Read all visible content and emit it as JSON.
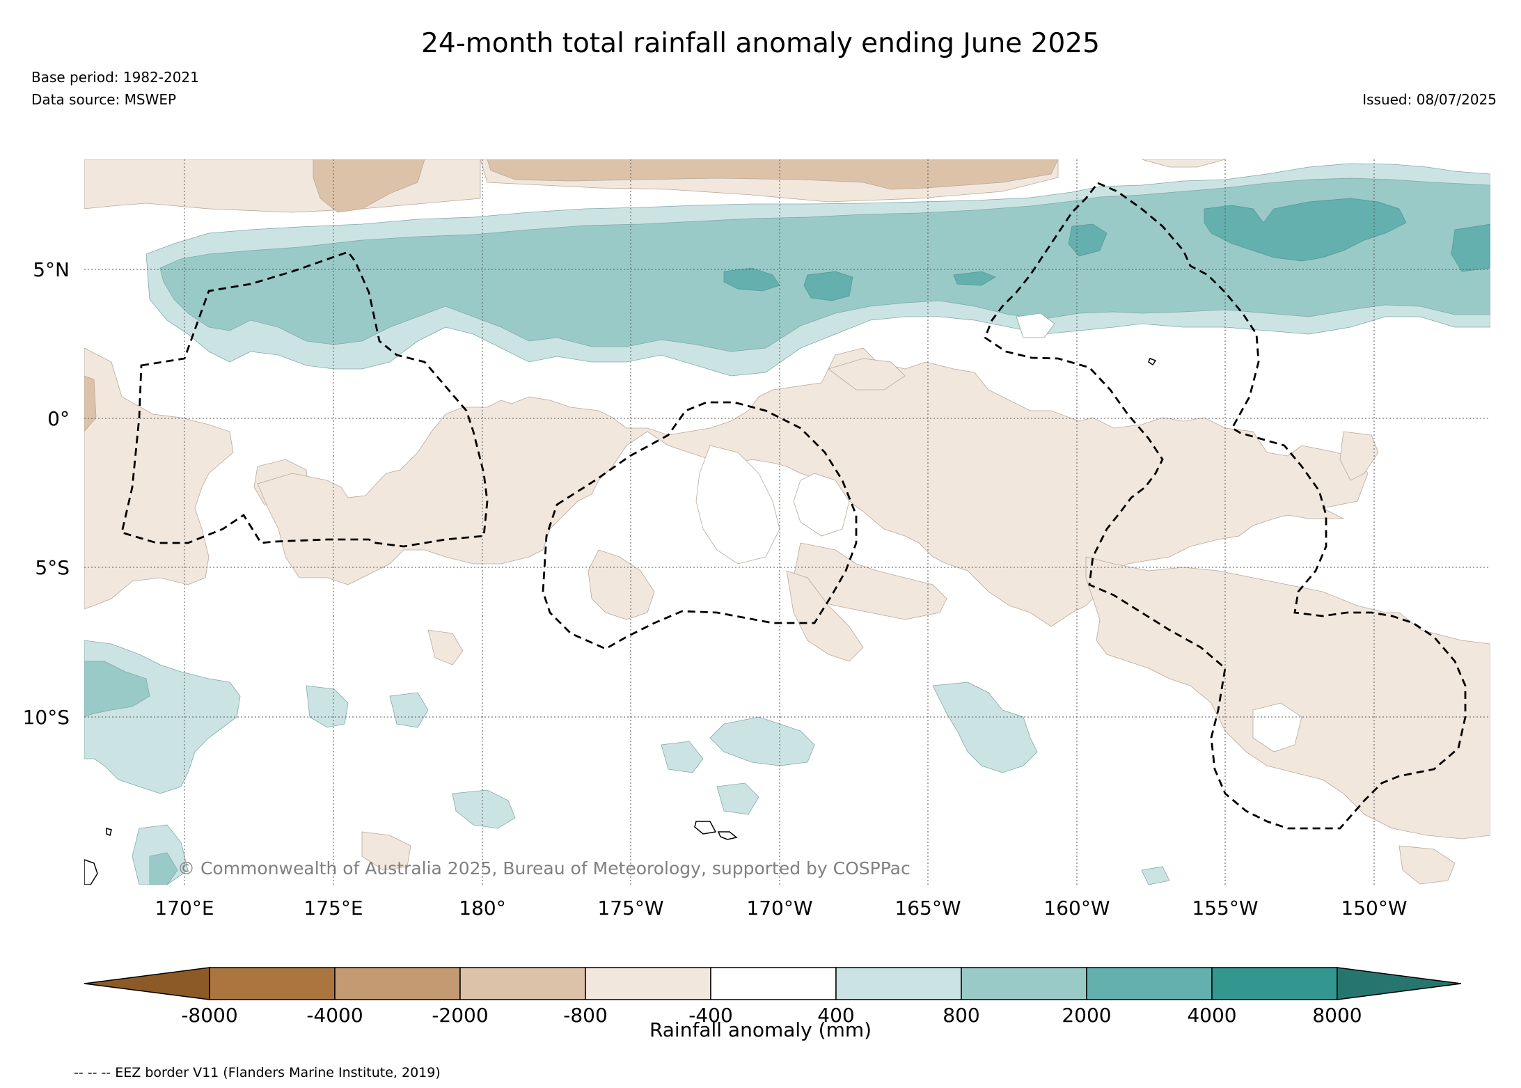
{
  "title": "24-month total rainfall anomaly ending June 2025",
  "base_period": "Base period: 1982-2021",
  "data_source": "Data source: MSWEP",
  "issued": "Issued: 08/07/2025",
  "copyright": "© Commonwealth of Australia 2025, Bureau of Meteorology, supported by COSPPac",
  "lat_labels": [
    "5°N",
    "0°",
    "5°S",
    "10°S"
  ],
  "lon_labels": [
    "170°E",
    "175°E",
    "180°",
    "175°W",
    "170°W",
    "165°W",
    "160°W",
    "155°W",
    "150°W"
  ],
  "colorbar": {
    "ticks": [
      "-8000",
      "-4000",
      "-2000",
      "-800",
      "-400",
      "400",
      "800",
      "2000",
      "4000",
      "8000"
    ],
    "colors": [
      "#8c5a26",
      "#ab753f",
      "#c49a72",
      "#dbc2a9",
      "#f1e7dd",
      "#ffffff",
      "#cbe4e3",
      "#99cac8",
      "#63b0ae",
      "#33978f",
      "#27756f"
    ],
    "label": "Rainfall anomaly (mm)"
  },
  "legend_eez": "-- -- -- EEZ border V11 (Flanders Marine Institute, 2019)"
}
